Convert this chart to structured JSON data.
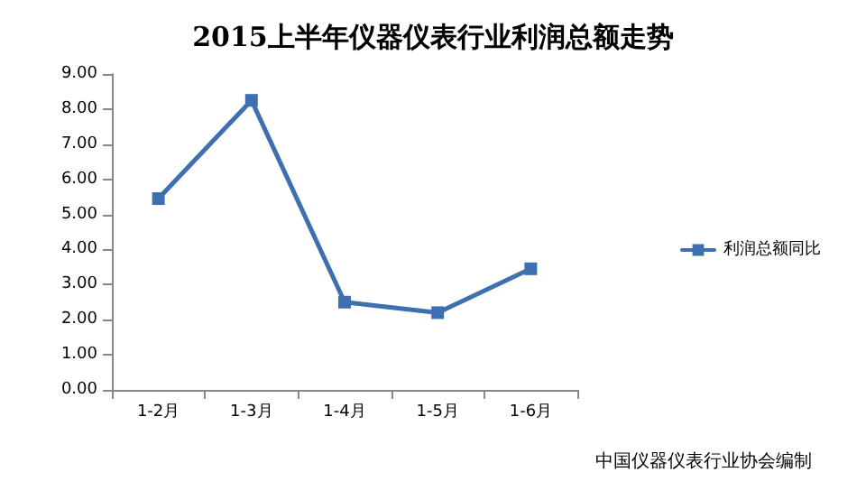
{
  "chart_data": {
    "type": "line",
    "title": "2015上半年仪器仪表行业利润总额走势",
    "categories": [
      "1-2月",
      "1-3月",
      "1-4月",
      "1-5月",
      "1-6月"
    ],
    "series": [
      {
        "name": "利润总额同比",
        "color": "#3e6fae",
        "values": [
          5.45,
          8.25,
          2.5,
          2.2,
          3.45
        ]
      }
    ],
    "ylim": [
      0,
      9
    ],
    "yticks": [
      {
        "value": 0,
        "label": "0.00"
      },
      {
        "value": 1,
        "label": "1.00"
      },
      {
        "value": 2,
        "label": "2.00"
      },
      {
        "value": 3,
        "label": "3.00"
      },
      {
        "value": 4,
        "label": "4.00"
      },
      {
        "value": 5,
        "label": "5.00"
      },
      {
        "value": 6,
        "label": "6.00"
      },
      {
        "value": 7,
        "label": "7.00"
      },
      {
        "value": 8,
        "label": "8.00"
      },
      {
        "value": 9,
        "label": "9.00"
      }
    ],
    "grid": false,
    "legend": "right",
    "marker": "square",
    "line_style": "solid",
    "annotations": [
      "中国仪器仪表行业协会编制"
    ]
  }
}
